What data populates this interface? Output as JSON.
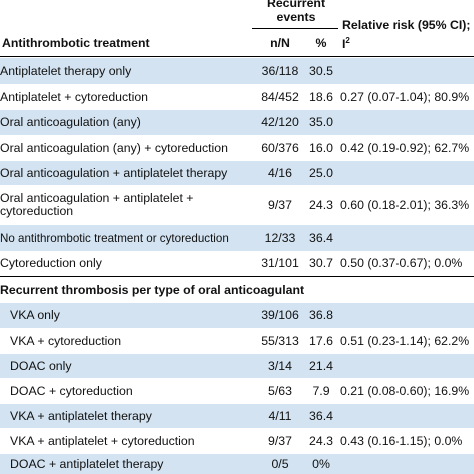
{
  "header": {
    "events_label": "Recurrent events",
    "treatment_label": "Antithrombotic treatment",
    "nn_label": "n/N",
    "pct_label": "%",
    "rr_label": "Relative risk (95% CI);",
    "rr_label_i": "I",
    "rr_label_sup": "2"
  },
  "rows": [
    {
      "label": "Antiplatelet therapy only",
      "nn": "36/118",
      "pct": "30.5",
      "rr": ""
    },
    {
      "label": "Antiplatelet + cytoreduction",
      "nn": "84/452",
      "pct": "18.6",
      "rr": "0.27 (0.07-1.04); 80.9%"
    },
    {
      "label": "Oral anticoagulation (any)",
      "nn": "42/120",
      "pct": "35.0",
      "rr": ""
    },
    {
      "label": "Oral anticoagulation (any) + cytoreduction",
      "nn": "60/376",
      "pct": "16.0",
      "rr": "0.42 (0.19-0.92); 62.7%"
    },
    {
      "label": "Oral anticoagulation + antiplatelet therapy",
      "nn": "4/16",
      "pct": "25.0",
      "rr": ""
    },
    {
      "label": "Oral anticoagulation + antiplatelet + cytoreduction",
      "nn": "9/37",
      "pct": "24.3",
      "rr": "0.60 (0.18-2.01); 36.3%"
    },
    {
      "label": "No antithrombotic treatment or cytoreduction",
      "nn": "12/33",
      "pct": "36.4",
      "rr": ""
    },
    {
      "label": "Cytoreduction only",
      "nn": "31/101",
      "pct": "30.7",
      "rr": "0.50 (0.37-0.67); 0.0%"
    }
  ],
  "section2": {
    "title": "Recurrent thrombosis per type of oral anticoagulant",
    "rows": [
      {
        "label": "VKA only",
        "nn": "39/106",
        "pct": "36.8",
        "rr": ""
      },
      {
        "label": "VKA + cytoreduction",
        "nn": "55/313",
        "pct": "17.6",
        "rr": "0.51 (0.23-1.14); 62.2%"
      },
      {
        "label": "DOAC only",
        "nn": "3/14",
        "pct": "21.4",
        "rr": ""
      },
      {
        "label": "DOAC + cytoreduction",
        "nn": "5/63",
        "pct": "7.9",
        "rr": "0.21 (0.08-0.60); 16.9%"
      },
      {
        "label": "VKA + antiplatelet therapy",
        "nn": "4/11",
        "pct": "36.4",
        "rr": ""
      },
      {
        "label": "VKA + antiplatelet + cytoreduction",
        "nn": "9/37",
        "pct": "24.3",
        "rr": "0.43 (0.16-1.15); 0.0%"
      },
      {
        "label": "DOAC + antiplatelet therapy",
        "nn": "0/5",
        "pct": "0%",
        "rr": ""
      }
    ]
  },
  "colors": {
    "shade": "#d3e3f1",
    "text": "#111111"
  }
}
